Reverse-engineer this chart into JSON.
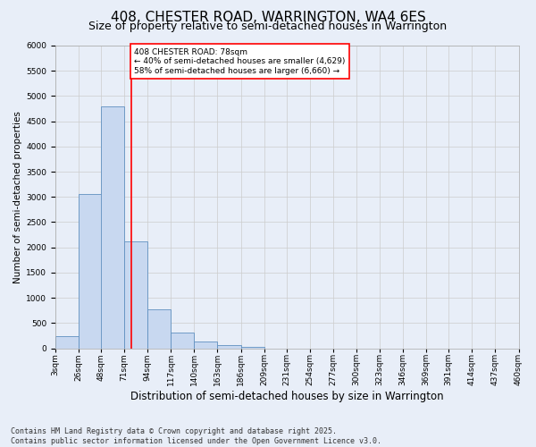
{
  "title": "408, CHESTER ROAD, WARRINGTON, WA4 6ES",
  "subtitle": "Size of property relative to semi-detached houses in Warrington",
  "xlabel": "Distribution of semi-detached houses by size in Warrington",
  "ylabel": "Number of semi-detached properties",
  "bar_color": "#c8d8f0",
  "bar_edge_color": "#6090c0",
  "bins": [
    "3sqm",
    "26sqm",
    "48sqm",
    "71sqm",
    "94sqm",
    "117sqm",
    "140sqm",
    "163sqm",
    "186sqm",
    "209sqm",
    "231sqm",
    "254sqm",
    "277sqm",
    "300sqm",
    "323sqm",
    "346sqm",
    "369sqm",
    "391sqm",
    "414sqm",
    "437sqm",
    "460sqm"
  ],
  "bin_left_edges": [
    3,
    26,
    48,
    71,
    94,
    117,
    140,
    163,
    186,
    209,
    231,
    254,
    277,
    300,
    323,
    346,
    369,
    391,
    414,
    437,
    460
  ],
  "values": [
    240,
    3050,
    4800,
    2120,
    780,
    305,
    140,
    65,
    30,
    0,
    0,
    0,
    0,
    0,
    0,
    0,
    0,
    0,
    0,
    0
  ],
  "property_size": 78,
  "vline_color": "red",
  "annotation_text": "408 CHESTER ROAD: 78sqm\n← 40% of semi-detached houses are smaller (4,629)\n58% of semi-detached houses are larger (6,660) →",
  "annotation_box_color": "white",
  "annotation_box_edge": "red",
  "ylim": [
    0,
    6000
  ],
  "yticks": [
    0,
    500,
    1000,
    1500,
    2000,
    2500,
    3000,
    3500,
    4000,
    4500,
    5000,
    5500,
    6000
  ],
  "grid_color": "#cccccc",
  "bg_color": "#e8eef8",
  "footnote": "Contains HM Land Registry data © Crown copyright and database right 2025.\nContains public sector information licensed under the Open Government Licence v3.0.",
  "title_fontsize": 11,
  "subtitle_fontsize": 9,
  "xlabel_fontsize": 8.5,
  "ylabel_fontsize": 7.5,
  "tick_fontsize": 6.5,
  "footnote_fontsize": 6
}
